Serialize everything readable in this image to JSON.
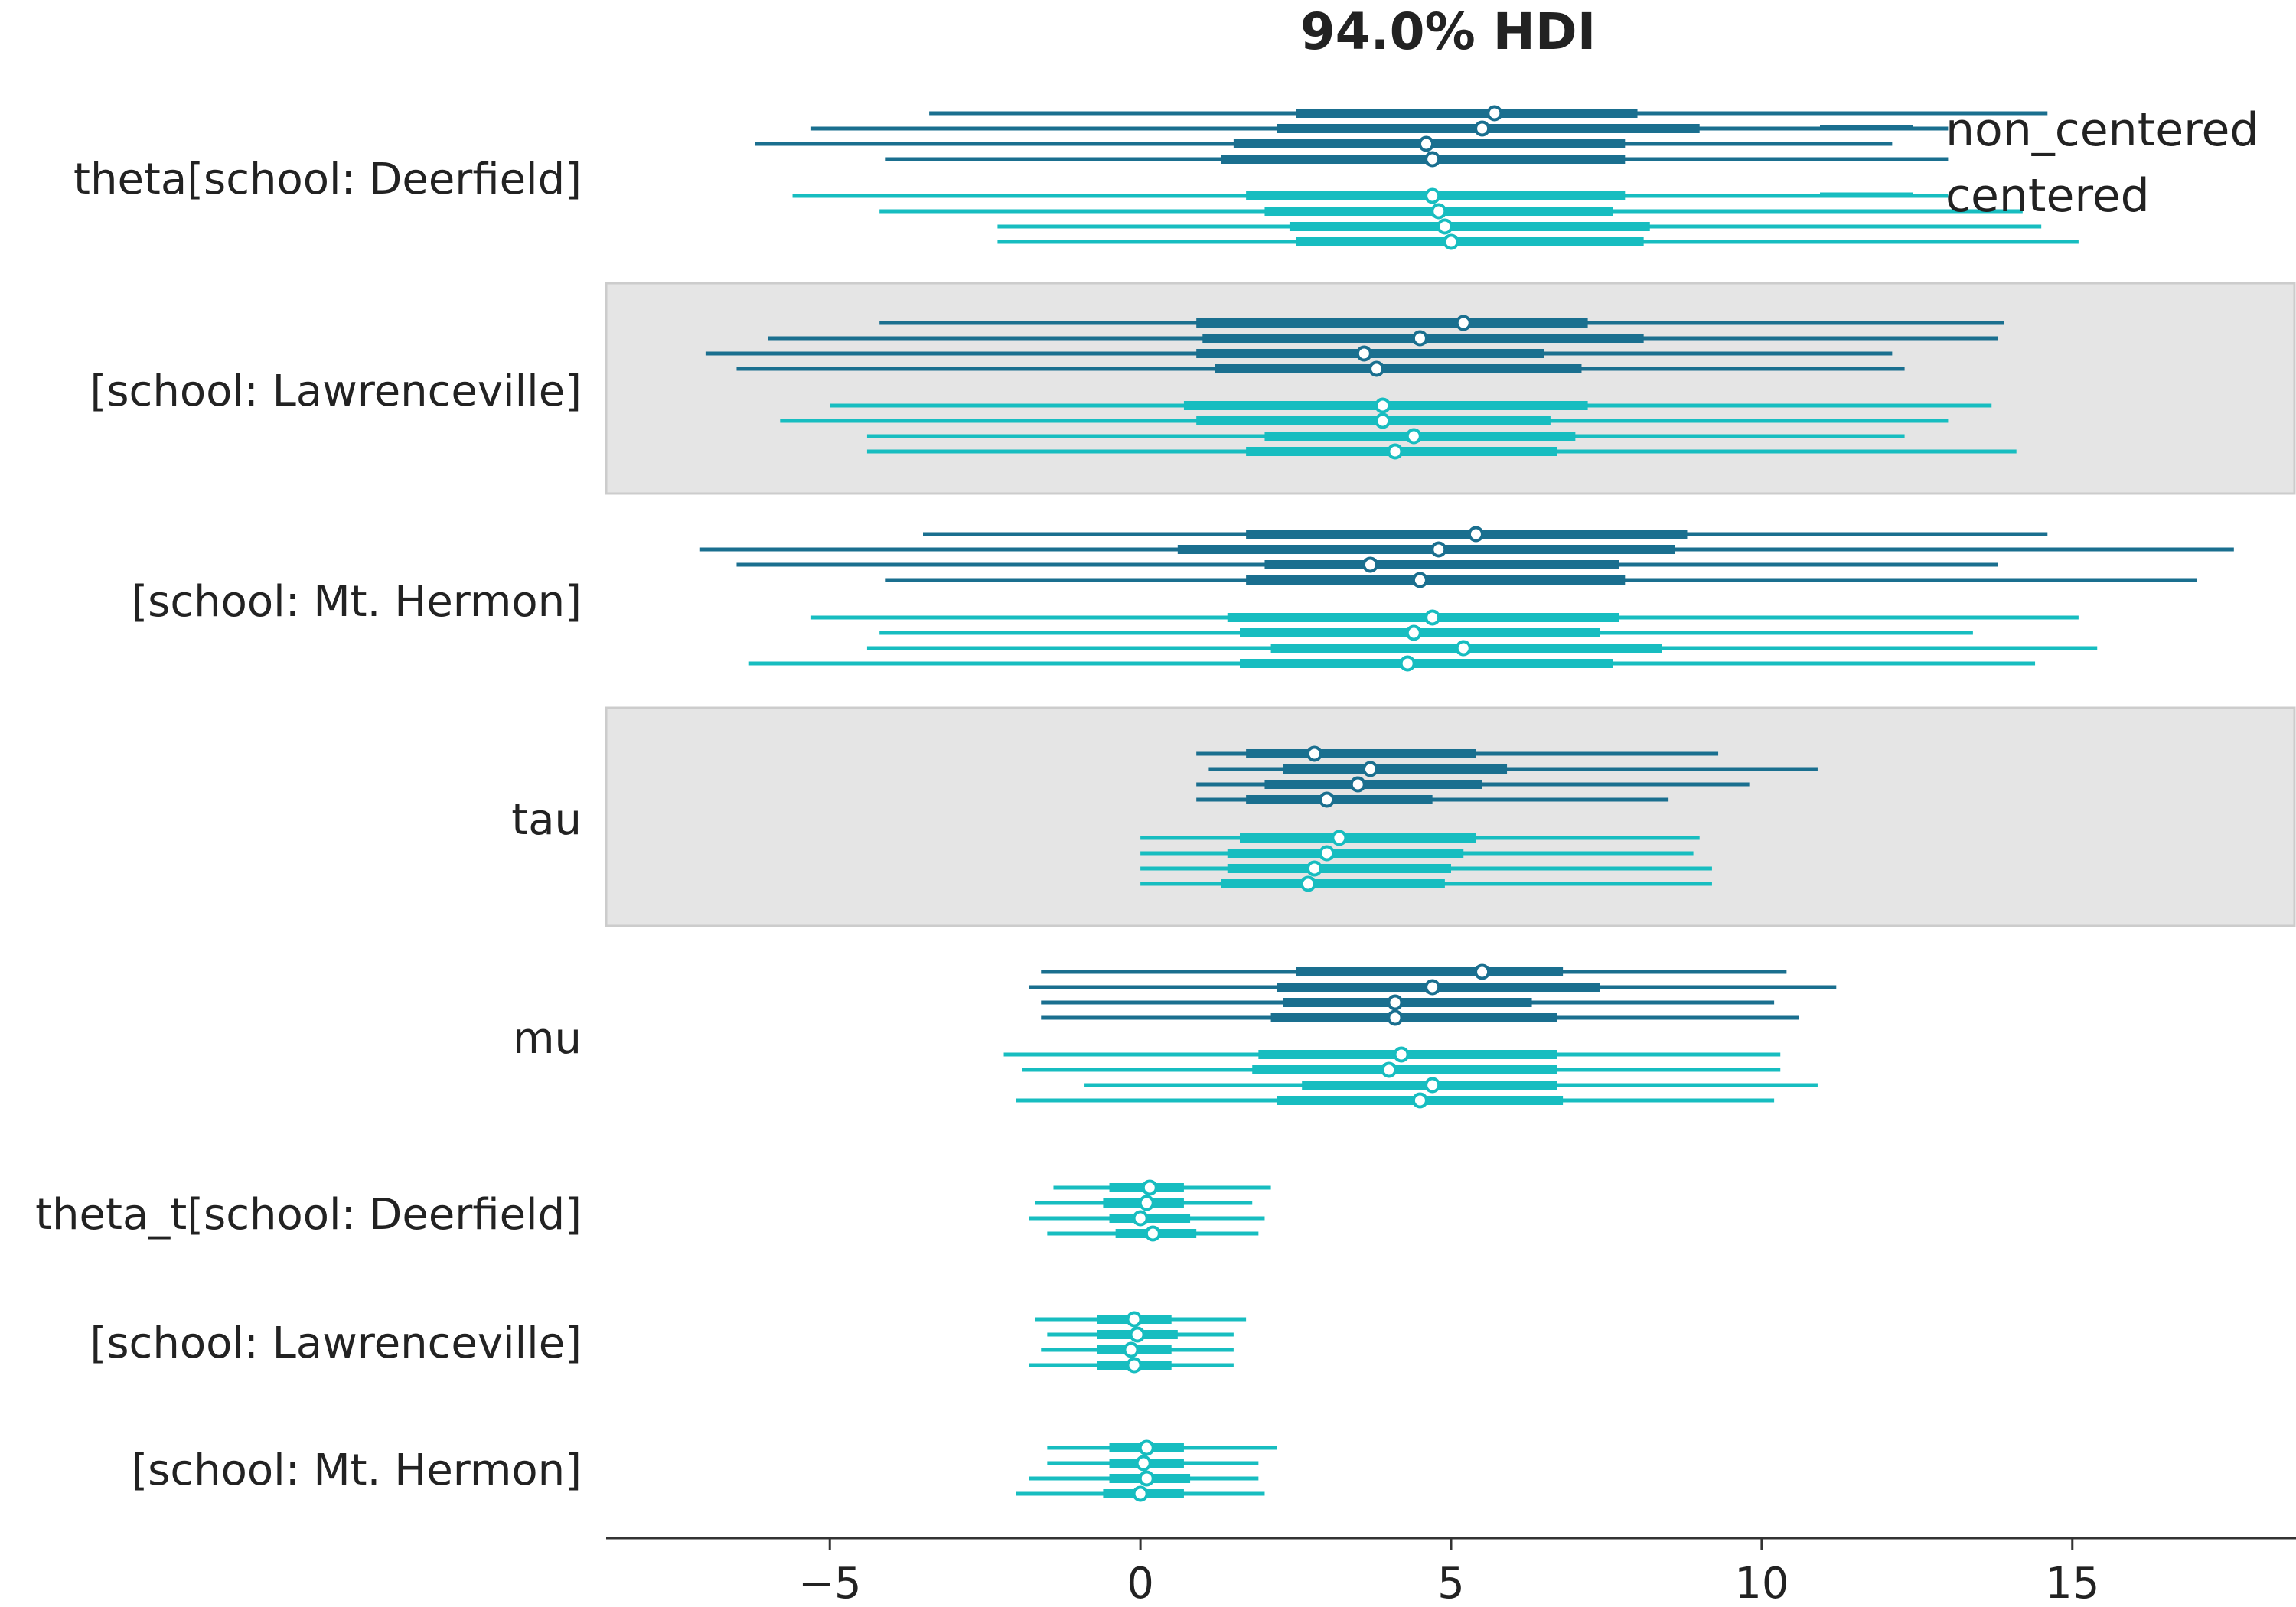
{
  "chart_data": {
    "type": "forest",
    "title": "94.0% HDI",
    "xlim": [
      -8.6,
      18.6
    ],
    "xticks": [
      {
        "value": -5,
        "label": "−5"
      },
      {
        "value": 0,
        "label": "0"
      },
      {
        "value": 5,
        "label": "5"
      },
      {
        "value": 10,
        "label": "10"
      },
      {
        "value": 15,
        "label": "15"
      }
    ],
    "legend": {
      "position": "top-right",
      "entries": [
        {
          "name": "non_centered",
          "color": "#1a6f8f"
        },
        {
          "name": "centered",
          "color": "#17bdc0"
        }
      ]
    },
    "colors": {
      "non_centered": "#1a6f8f",
      "centered": "#17bdc0",
      "band": "#e5e5e5",
      "band_edge": "#cccccc",
      "axis": "#333333",
      "text": "#222222"
    },
    "rows": [
      {
        "label": "theta[school: Deerfield]",
        "shaded": false,
        "models": [
          {
            "model": "non_centered",
            "chains": [
              {
                "hdi": [
                  -3.4,
                  14.6
                ],
                "iqr": [
                  2.5,
                  8.0
                ],
                "median": 5.7
              },
              {
                "hdi": [
                  -5.3,
                  13.0
                ],
                "iqr": [
                  2.2,
                  9.0
                ],
                "median": 5.5
              },
              {
                "hdi": [
                  -6.2,
                  12.1
                ],
                "iqr": [
                  1.5,
                  7.8
                ],
                "median": 4.6
              },
              {
                "hdi": [
                  -4.1,
                  13.0
                ],
                "iqr": [
                  1.3,
                  7.8
                ],
                "median": 4.7
              }
            ]
          },
          {
            "model": "centered",
            "chains": [
              {
                "hdi": [
                  -5.6,
                  13.0
                ],
                "iqr": [
                  1.7,
                  7.8
                ],
                "median": 4.7
              },
              {
                "hdi": [
                  -4.2,
                  14.2
                ],
                "iqr": [
                  2.0,
                  7.6
                ],
                "median": 4.8
              },
              {
                "hdi": [
                  -2.3,
                  14.5
                ],
                "iqr": [
                  2.4,
                  8.2
                ],
                "median": 4.9
              },
              {
                "hdi": [
                  -2.3,
                  15.1
                ],
                "iqr": [
                  2.5,
                  8.1
                ],
                "median": 5.0
              }
            ]
          }
        ]
      },
      {
        "label": "[school: Lawrenceville]",
        "shaded": true,
        "models": [
          {
            "model": "non_centered",
            "chains": [
              {
                "hdi": [
                  -4.2,
                  13.9
                ],
                "iqr": [
                  0.9,
                  7.2
                ],
                "median": 5.2
              },
              {
                "hdi": [
                  -6.0,
                  13.8
                ],
                "iqr": [
                  1.0,
                  8.1
                ],
                "median": 4.5
              },
              {
                "hdi": [
                  -7.0,
                  12.1
                ],
                "iqr": [
                  0.9,
                  6.5
                ],
                "median": 3.6
              },
              {
                "hdi": [
                  -6.5,
                  12.3
                ],
                "iqr": [
                  1.2,
                  7.1
                ],
                "median": 3.8
              }
            ]
          },
          {
            "model": "centered",
            "chains": [
              {
                "hdi": [
                  -5.0,
                  13.7
                ],
                "iqr": [
                  0.7,
                  7.2
                ],
                "median": 3.9
              },
              {
                "hdi": [
                  -5.8,
                  13.0
                ],
                "iqr": [
                  0.9,
                  6.6
                ],
                "median": 3.9
              },
              {
                "hdi": [
                  -4.4,
                  12.3
                ],
                "iqr": [
                  2.0,
                  7.0
                ],
                "median": 4.4
              },
              {
                "hdi": [
                  -4.4,
                  14.1
                ],
                "iqr": [
                  1.7,
                  6.7
                ],
                "median": 4.1
              }
            ]
          }
        ]
      },
      {
        "label": "[school: Mt. Hermon]",
        "shaded": false,
        "models": [
          {
            "model": "non_centered",
            "chains": [
              {
                "hdi": [
                  -3.5,
                  14.6
                ],
                "iqr": [
                  1.7,
                  8.8
                ],
                "median": 5.4
              },
              {
                "hdi": [
                  -7.1,
                  17.6
                ],
                "iqr": [
                  0.6,
                  8.6
                ],
                "median": 4.8
              },
              {
                "hdi": [
                  -6.5,
                  13.8
                ],
                "iqr": [
                  2.0,
                  7.7
                ],
                "median": 3.7
              },
              {
                "hdi": [
                  -4.1,
                  17.0
                ],
                "iqr": [
                  1.7,
                  7.8
                ],
                "median": 4.5
              }
            ]
          },
          {
            "model": "centered",
            "chains": [
              {
                "hdi": [
                  -5.3,
                  15.1
                ],
                "iqr": [
                  1.4,
                  7.7
                ],
                "median": 4.7
              },
              {
                "hdi": [
                  -4.2,
                  13.4
                ],
                "iqr": [
                  1.6,
                  7.4
                ],
                "median": 4.4
              },
              {
                "hdi": [
                  -4.4,
                  15.4
                ],
                "iqr": [
                  2.1,
                  8.4
                ],
                "median": 5.2
              },
              {
                "hdi": [
                  -6.3,
                  14.4
                ],
                "iqr": [
                  1.6,
                  7.6
                ],
                "median": 4.3
              }
            ]
          }
        ]
      },
      {
        "label": "tau",
        "shaded": true,
        "models": [
          {
            "model": "non_centered",
            "chains": [
              {
                "hdi": [
                  0.9,
                  9.3
                ],
                "iqr": [
                  1.7,
                  5.4
                ],
                "median": 2.8
              },
              {
                "hdi": [
                  1.1,
                  10.9
                ],
                "iqr": [
                  2.3,
                  5.9
                ],
                "median": 3.7
              },
              {
                "hdi": [
                  0.9,
                  9.8
                ],
                "iqr": [
                  2.0,
                  5.5
                ],
                "median": 3.5
              },
              {
                "hdi": [
                  0.9,
                  8.5
                ],
                "iqr": [
                  1.7,
                  4.7
                ],
                "median": 3.0
              }
            ]
          },
          {
            "model": "centered",
            "chains": [
              {
                "hdi": [
                  0.0,
                  9.0
                ],
                "iqr": [
                  1.6,
                  5.4
                ],
                "median": 3.2
              },
              {
                "hdi": [
                  0.0,
                  8.9
                ],
                "iqr": [
                  1.4,
                  5.2
                ],
                "median": 3.0
              },
              {
                "hdi": [
                  0.0,
                  9.2
                ],
                "iqr": [
                  1.4,
                  5.0
                ],
                "median": 2.8
              },
              {
                "hdi": [
                  0.0,
                  9.2
                ],
                "iqr": [
                  1.3,
                  4.9
                ],
                "median": 2.7
              }
            ]
          }
        ]
      },
      {
        "label": "mu",
        "shaded": false,
        "models": [
          {
            "model": "non_centered",
            "chains": [
              {
                "hdi": [
                  -1.6,
                  10.4
                ],
                "iqr": [
                  2.5,
                  6.8
                ],
                "median": 5.5
              },
              {
                "hdi": [
                  -1.8,
                  11.2
                ],
                "iqr": [
                  2.2,
                  7.4
                ],
                "median": 4.7
              },
              {
                "hdi": [
                  -1.6,
                  10.2
                ],
                "iqr": [
                  2.3,
                  6.3
                ],
                "median": 4.1
              },
              {
                "hdi": [
                  -1.6,
                  10.6
                ],
                "iqr": [
                  2.1,
                  6.7
                ],
                "median": 4.1
              }
            ]
          },
          {
            "model": "centered",
            "chains": [
              {
                "hdi": [
                  -2.2,
                  10.3
                ],
                "iqr": [
                  1.9,
                  6.7
                ],
                "median": 4.2
              },
              {
                "hdi": [
                  -1.9,
                  10.3
                ],
                "iqr": [
                  1.8,
                  6.7
                ],
                "median": 4.0
              },
              {
                "hdi": [
                  -0.9,
                  10.9
                ],
                "iqr": [
                  2.6,
                  6.7
                ],
                "median": 4.7
              },
              {
                "hdi": [
                  -2.0,
                  10.2
                ],
                "iqr": [
                  2.2,
                  6.8
                ],
                "median": 4.5
              }
            ]
          }
        ]
      },
      {
        "label": "theta_t[school: Deerfield]",
        "shaded": false,
        "models": [
          {
            "model": "centered",
            "chains": [
              {
                "hdi": [
                  -1.4,
                  2.1
                ],
                "iqr": [
                  -0.5,
                  0.7
                ],
                "median": 0.15
              },
              {
                "hdi": [
                  -1.7,
                  1.8
                ],
                "iqr": [
                  -0.6,
                  0.7
                ],
                "median": 0.1
              },
              {
                "hdi": [
                  -1.8,
                  2.0
                ],
                "iqr": [
                  -0.5,
                  0.8
                ],
                "median": 0.0
              },
              {
                "hdi": [
                  -1.5,
                  1.9
                ],
                "iqr": [
                  -0.4,
                  0.9
                ],
                "median": 0.2
              }
            ]
          }
        ]
      },
      {
        "label": "[school: Lawrenceville]",
        "shaded": false,
        "models": [
          {
            "model": "centered",
            "chains": [
              {
                "hdi": [
                  -1.7,
                  1.7
                ],
                "iqr": [
                  -0.7,
                  0.5
                ],
                "median": -0.1
              },
              {
                "hdi": [
                  -1.5,
                  1.5
                ],
                "iqr": [
                  -0.7,
                  0.6
                ],
                "median": -0.05
              },
              {
                "hdi": [
                  -1.6,
                  1.5
                ],
                "iqr": [
                  -0.7,
                  0.5
                ],
                "median": -0.15
              },
              {
                "hdi": [
                  -1.8,
                  1.5
                ],
                "iqr": [
                  -0.7,
                  0.5
                ],
                "median": -0.1
              }
            ]
          }
        ]
      },
      {
        "label": "[school: Mt. Hermon]",
        "shaded": false,
        "models": [
          {
            "model": "centered",
            "chains": [
              {
                "hdi": [
                  -1.5,
                  2.2
                ],
                "iqr": [
                  -0.5,
                  0.7
                ],
                "median": 0.1
              },
              {
                "hdi": [
                  -1.5,
                  1.9
                ],
                "iqr": [
                  -0.5,
                  0.7
                ],
                "median": 0.05
              },
              {
                "hdi": [
                  -1.8,
                  1.9
                ],
                "iqr": [
                  -0.5,
                  0.8
                ],
                "median": 0.1
              },
              {
                "hdi": [
                  -2.0,
                  2.0
                ],
                "iqr": [
                  -0.6,
                  0.7
                ],
                "median": 0.0
              }
            ]
          }
        ]
      }
    ]
  }
}
